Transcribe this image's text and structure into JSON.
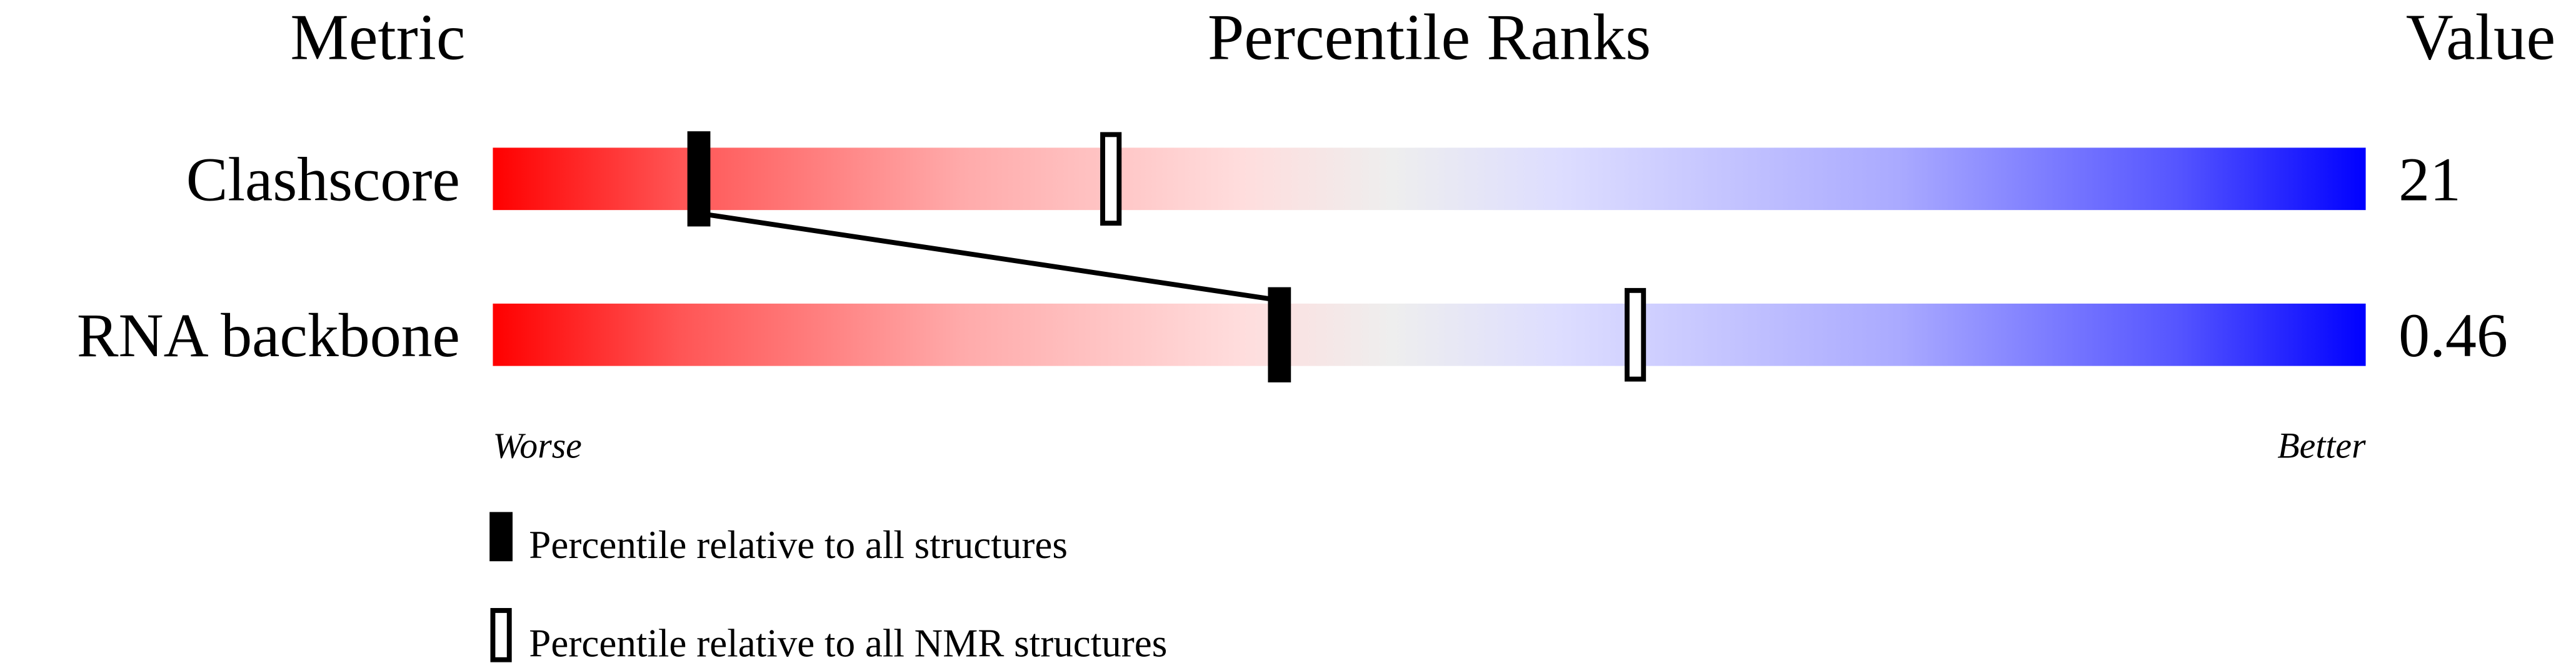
{
  "chart_data": {
    "type": "percentile-slider",
    "headers": {
      "metric": "Metric",
      "title": "Percentile Ranks",
      "value": "Value"
    },
    "xlim": [
      0,
      100
    ],
    "rows": [
      {
        "metric": "Clashscore",
        "value": "21",
        "percentile_all": 11,
        "percentile_nmr": 33
      },
      {
        "metric": "RNA backbone",
        "value": "0.46",
        "percentile_all": 42,
        "percentile_nmr": 61
      }
    ],
    "axis_labels": {
      "left": "Worse",
      "right": "Better"
    },
    "legend": [
      {
        "marker": "filled",
        "label": "Percentile relative to all structures"
      },
      {
        "marker": "open",
        "label": "Percentile relative to all NMR structures"
      }
    ],
    "colors": {
      "worse": "#ff0000",
      "mid": "#eeeeee",
      "better": "#0000ff"
    }
  }
}
